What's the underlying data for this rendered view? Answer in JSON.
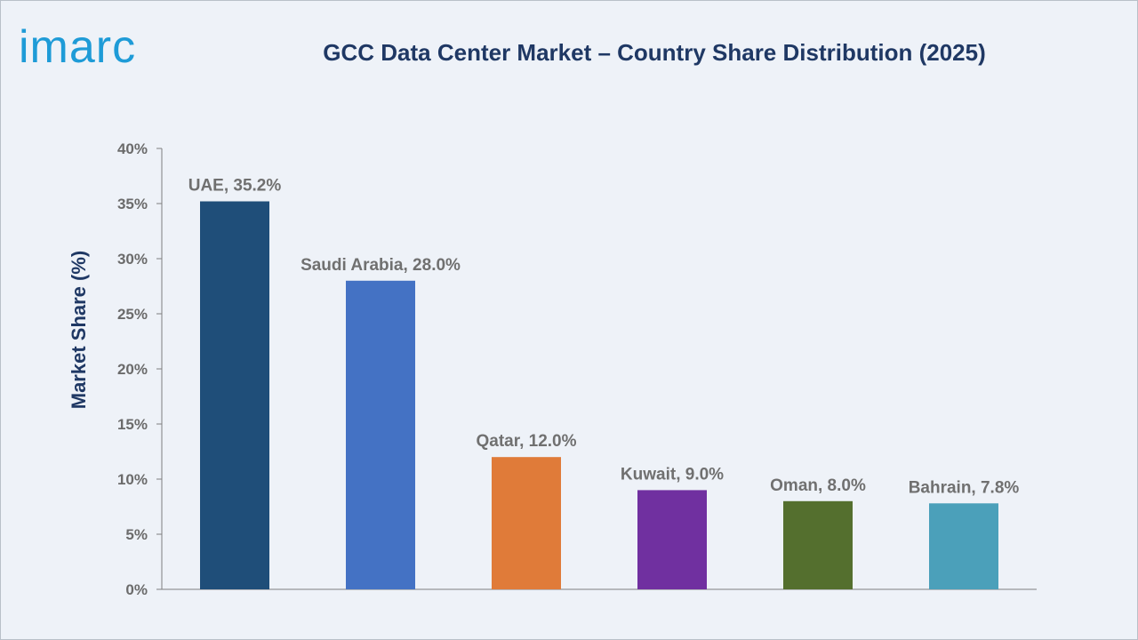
{
  "brand": {
    "logo_text": "imarc",
    "color": "#1e9bd7"
  },
  "chart_data": {
    "type": "bar",
    "title": "GCC Data Center Market – Country Share Distribution (2025)",
    "xlabel": "",
    "ylabel": "Market Share (%)",
    "ylim": [
      0,
      40
    ],
    "yticks": [
      "0%",
      "5%",
      "10%",
      "15%",
      "20%",
      "25%",
      "30%",
      "35%",
      "40%"
    ],
    "ytick_values": [
      0,
      5,
      10,
      15,
      20,
      25,
      30,
      35,
      40
    ],
    "categories": [
      "UAE",
      "Saudi Arabia",
      "Qatar",
      "Kuwait",
      "Oman",
      "Bahrain"
    ],
    "values": [
      35.2,
      28.0,
      12.0,
      9.0,
      8.0,
      7.8
    ],
    "data_labels": [
      "UAE, 35.2%",
      "Saudi Arabia, 28.0%",
      "Qatar, 12.0%",
      "Kuwait, 9.0%",
      "Oman, 8.0%",
      "Bahrain, 7.8%"
    ],
    "colors": [
      "#1f4e79",
      "#4472c4",
      "#e07b39",
      "#7030a0",
      "#546f2e",
      "#4ba0ba"
    ],
    "grid": false,
    "legend": "none"
  }
}
